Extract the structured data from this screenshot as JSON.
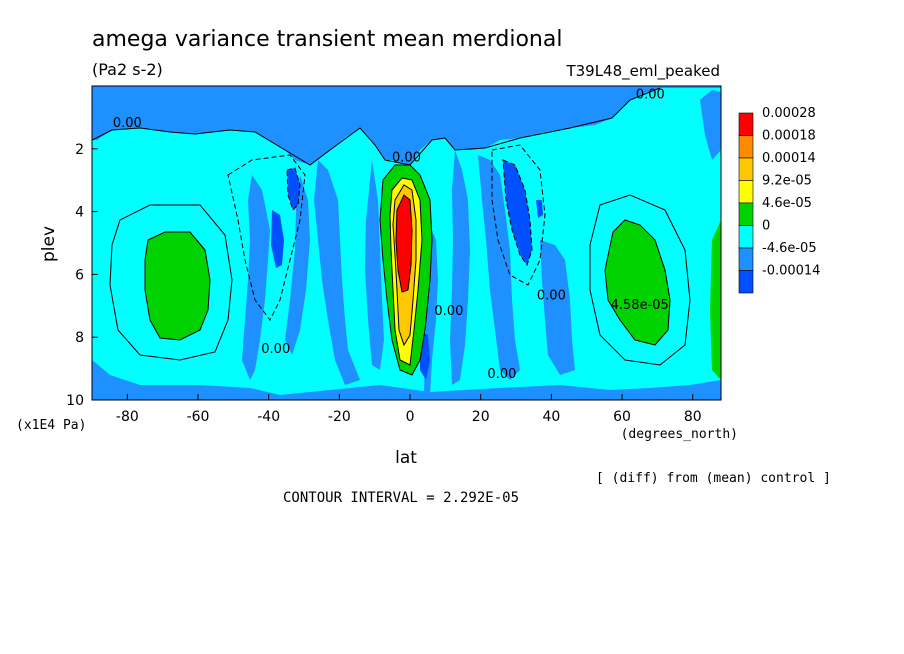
{
  "chart_data": {
    "type": "heatmap",
    "title": "amega variance transient mean merdional",
    "units": "(Pa2 s-2)",
    "experiment": "T39L48_eml_peaked",
    "xlabel": "lat",
    "xunits": "(degrees_north)",
    "ylabel": "plev",
    "yunits": "(x1E4 Pa)",
    "xlim": [
      -90,
      88
    ],
    "ylim": [
      10,
      0
    ],
    "x_ticks": [
      "-80",
      "-60",
      "-40",
      "-20",
      "0",
      "20",
      "40",
      "60",
      "80"
    ],
    "x_tick_values": [
      -80,
      -60,
      -40,
      -20,
      0,
      20,
      40,
      60,
      80
    ],
    "y_ticks": [
      "2",
      "4",
      "6",
      "8",
      "10"
    ],
    "y_tick_values": [
      2,
      4,
      6,
      8,
      10
    ],
    "legend": {
      "placement": "right",
      "labels": [
        "0.00028",
        "0.00018",
        "0.00014",
        "9.2e-05",
        "4.6e-05",
        "0",
        "-4.6e-05",
        "-0.00014"
      ],
      "colors": [
        "#ff0000",
        "#ff8c00",
        "#ffc800",
        "#ffff00",
        "#00d200",
        "#00ffff",
        "#1e90ff",
        "#0050ff"
      ]
    },
    "contour_labels": [
      {
        "text": "0.00",
        "lat": 68,
        "plev": 0.4
      },
      {
        "text": "0.00",
        "lat": -80,
        "plev": 1.3
      },
      {
        "text": "0.00",
        "lat": -1,
        "plev": 2.4
      },
      {
        "text": "0.00",
        "lat": 11,
        "plev": 7.3
      },
      {
        "text": "0.00",
        "lat": 40,
        "plev": 6.8
      },
      {
        "text": "0.00",
        "lat": -38,
        "plev": 8.5
      },
      {
        "text": "0.00",
        "lat": 26,
        "plev": 9.3
      },
      {
        "text": "4.58e-05",
        "lat": 65,
        "plev": 7.1
      }
    ],
    "grid": false
  },
  "annotations": {
    "diff_note": "[ (diff) from (mean) control ]",
    "contour_interval": "CONTOUR INTERVAL = 2.292E-05"
  }
}
